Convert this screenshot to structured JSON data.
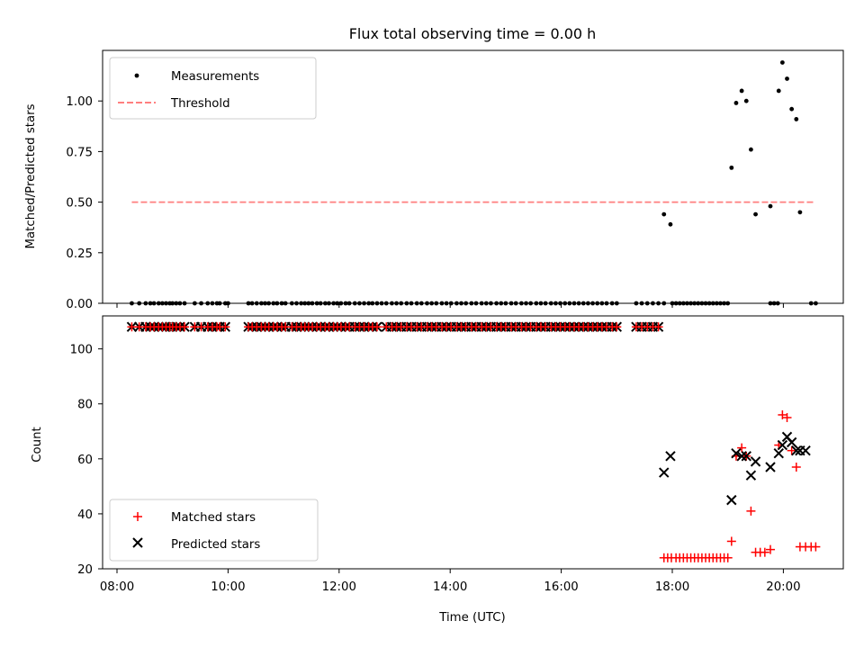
{
  "chart_data": [
    {
      "type": "scatter",
      "title": "Flux total observing time = 0.00 h",
      "xlabel": "",
      "ylabel": "Matched/Predicted stars",
      "xlim": [
        "08:00",
        "21:00"
      ],
      "ylim": [
        0,
        1.25
      ],
      "yticks": [
        "0.00",
        "0.25",
        "0.50",
        "0.75",
        "1.00"
      ],
      "legend_position": "top-left",
      "grid": false,
      "series": [
        {
          "name": "Measurements",
          "kind": "points",
          "color": "#000000",
          "x_zero": [
            "08:16",
            "08:24",
            "08:31",
            "08:36",
            "08:40",
            "08:45",
            "08:49",
            "08:53",
            "08:57",
            "09:00",
            "09:04",
            "09:08",
            "09:13",
            "09:24",
            "09:31",
            "09:38",
            "09:43",
            "09:48",
            "09:51",
            "09:57",
            "10:00",
            "10:22",
            "10:26",
            "10:31",
            "10:36",
            "10:40",
            "10:44",
            "10:49",
            "10:53",
            "10:58",
            "11:02",
            "11:09",
            "11:14",
            "11:19",
            "11:23",
            "11:27",
            "11:31",
            "11:36",
            "11:40",
            "11:45",
            "11:49",
            "11:54",
            "11:58",
            "12:02",
            "12:07",
            "12:11",
            "12:17",
            "12:22",
            "12:27",
            "12:32",
            "12:36",
            "12:41",
            "12:46",
            "12:51",
            "12:57",
            "13:02",
            "13:07",
            "13:13",
            "13:18",
            "13:24",
            "13:29",
            "13:35",
            "13:40",
            "13:45",
            "13:51",
            "13:56",
            "14:01",
            "14:07",
            "14:12",
            "14:17",
            "14:23",
            "14:28",
            "14:34",
            "14:39",
            "14:44",
            "14:50",
            "14:55",
            "15:00",
            "15:06",
            "15:11",
            "15:17",
            "15:22",
            "15:27",
            "15:33",
            "15:38",
            "15:43",
            "15:49",
            "15:54",
            "15:59",
            "16:04",
            "16:09",
            "16:14",
            "16:19",
            "16:24",
            "16:29",
            "16:34",
            "16:39",
            "16:44",
            "16:49",
            "16:55",
            "17:00",
            "17:21",
            "17:27",
            "17:33",
            "17:39",
            "17:45",
            "17:51",
            "18:00",
            "18:04",
            "18:08",
            "18:12",
            "18:16",
            "18:20",
            "18:24",
            "18:28",
            "18:32",
            "18:36",
            "18:40",
            "18:44",
            "18:48",
            "18:52",
            "18:56",
            "19:00",
            "19:46",
            "19:50",
            "19:54",
            "20:30",
            "20:35"
          ],
          "points": [
            {
              "x": "17:51",
              "y": 0.44
            },
            {
              "x": "17:58",
              "y": 0.39
            },
            {
              "x": "19:04",
              "y": 0.67
            },
            {
              "x": "19:09",
              "y": 0.99
            },
            {
              "x": "19:15",
              "y": 1.05
            },
            {
              "x": "19:20",
              "y": 1.0
            },
            {
              "x": "19:25",
              "y": 0.76
            },
            {
              "x": "19:30",
              "y": 0.44
            },
            {
              "x": "19:46",
              "y": 0.48
            },
            {
              "x": "19:55",
              "y": 1.05
            },
            {
              "x": "19:59",
              "y": 1.19
            },
            {
              "x": "20:04",
              "y": 1.11
            },
            {
              "x": "20:09",
              "y": 0.96
            },
            {
              "x": "20:14",
              "y": 0.91
            },
            {
              "x": "20:18",
              "y": 0.45
            }
          ]
        },
        {
          "name": "Threshold",
          "kind": "dashed-line",
          "color": "#ff7f7f",
          "x": [
            "08:16",
            "20:35"
          ],
          "y": [
            0.5,
            0.5
          ]
        }
      ]
    },
    {
      "type": "scatter",
      "title": "",
      "xlabel": "Time (UTC)",
      "ylabel": "Count",
      "xlim": [
        "08:00",
        "21:00"
      ],
      "ylim": [
        20,
        112
      ],
      "xticks": [
        "08:00",
        "10:00",
        "12:00",
        "14:00",
        "16:00",
        "18:00",
        "20:00"
      ],
      "yticks": [
        "20",
        "40",
        "60",
        "80",
        "100"
      ],
      "legend_position": "bottom-left",
      "grid": false,
      "series": [
        {
          "name": "Matched stars",
          "kind": "plus-markers",
          "color": "#ff0000",
          "points": [
            {
              "x": "17:51",
              "y": 24
            },
            {
              "x": "17:55",
              "y": 24
            },
            {
              "x": "17:59",
              "y": 24
            },
            {
              "x": "18:04",
              "y": 24
            },
            {
              "x": "18:08",
              "y": 24
            },
            {
              "x": "18:12",
              "y": 24
            },
            {
              "x": "18:16",
              "y": 24
            },
            {
              "x": "18:20",
              "y": 24
            },
            {
              "x": "18:24",
              "y": 24
            },
            {
              "x": "18:28",
              "y": 24
            },
            {
              "x": "18:32",
              "y": 24
            },
            {
              "x": "18:36",
              "y": 24
            },
            {
              "x": "18:40",
              "y": 24
            },
            {
              "x": "18:44",
              "y": 24
            },
            {
              "x": "18:48",
              "y": 24
            },
            {
              "x": "18:52",
              "y": 24
            },
            {
              "x": "18:56",
              "y": 24
            },
            {
              "x": "19:00",
              "y": 24
            },
            {
              "x": "19:04",
              "y": 30
            },
            {
              "x": "19:09",
              "y": 61
            },
            {
              "x": "19:15",
              "y": 64
            },
            {
              "x": "19:20",
              "y": 61
            },
            {
              "x": "19:25",
              "y": 41
            },
            {
              "x": "19:30",
              "y": 26
            },
            {
              "x": "19:35",
              "y": 26
            },
            {
              "x": "19:40",
              "y": 26
            },
            {
              "x": "19:46",
              "y": 27
            },
            {
              "x": "19:55",
              "y": 65
            },
            {
              "x": "19:59",
              "y": 76
            },
            {
              "x": "20:04",
              "y": 75
            },
            {
              "x": "20:09",
              "y": 63
            },
            {
              "x": "20:14",
              "y": 57
            },
            {
              "x": "20:18",
              "y": 28
            },
            {
              "x": "20:24",
              "y": 28
            },
            {
              "x": "20:30",
              "y": 28
            },
            {
              "x": "20:35",
              "y": 28
            }
          ]
        },
        {
          "name": "Predicted stars",
          "kind": "x-markers",
          "color": "#000000",
          "points": [
            {
              "x": "17:51",
              "y": 55
            },
            {
              "x": "17:58",
              "y": 61
            },
            {
              "x": "19:04",
              "y": 45
            },
            {
              "x": "19:09",
              "y": 62
            },
            {
              "x": "19:15",
              "y": 61
            },
            {
              "x": "19:20",
              "y": 61
            },
            {
              "x": "19:25",
              "y": 54
            },
            {
              "x": "19:30",
              "y": 59
            },
            {
              "x": "19:46",
              "y": 57
            },
            {
              "x": "19:55",
              "y": 62
            },
            {
              "x": "19:59",
              "y": 65
            },
            {
              "x": "20:04",
              "y": 68
            },
            {
              "x": "20:09",
              "y": 66
            },
            {
              "x": "20:14",
              "y": 63
            },
            {
              "x": "20:18",
              "y": 63
            },
            {
              "x": "20:24",
              "y": 63
            }
          ],
          "top_row_value": 108,
          "top_row_x": [
            "08:16",
            "08:24",
            "08:31",
            "08:36",
            "08:40",
            "08:45",
            "08:49",
            "08:53",
            "08:57",
            "09:00",
            "09:04",
            "09:08",
            "09:13",
            "09:24",
            "09:31",
            "09:38",
            "09:43",
            "09:48",
            "09:51",
            "09:57",
            "10:22",
            "10:26",
            "10:31",
            "10:36",
            "10:40",
            "10:44",
            "10:49",
            "10:53",
            "10:58",
            "11:02",
            "11:09",
            "11:14",
            "11:19",
            "11:23",
            "11:27",
            "11:31",
            "11:36",
            "11:40",
            "11:45",
            "11:49",
            "11:54",
            "11:58",
            "12:02",
            "12:07",
            "12:11",
            "12:17",
            "12:22",
            "12:27",
            "12:32",
            "12:36",
            "12:41",
            "12:51",
            "12:57",
            "13:02",
            "13:07",
            "13:13",
            "13:18",
            "13:24",
            "13:29",
            "13:35",
            "13:40",
            "13:45",
            "13:51",
            "13:56",
            "14:01",
            "14:07",
            "14:12",
            "14:17",
            "14:23",
            "14:28",
            "14:34",
            "14:39",
            "14:44",
            "14:50",
            "14:55",
            "15:00",
            "15:06",
            "15:11",
            "15:17",
            "15:22",
            "15:27",
            "15:33",
            "15:38",
            "15:43",
            "15:49",
            "15:54",
            "15:59",
            "16:04",
            "16:09",
            "16:14",
            "16:19",
            "16:24",
            "16:29",
            "16:34",
            "16:39",
            "16:44",
            "16:49",
            "16:55",
            "17:00",
            "17:21",
            "17:27",
            "17:33",
            "17:39",
            "17:45"
          ]
        }
      ]
    }
  ]
}
